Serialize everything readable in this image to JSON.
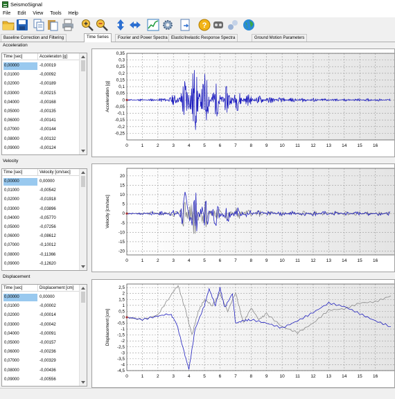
{
  "window": {
    "title": "SeismoSignal"
  },
  "menu": [
    "File",
    "Edit",
    "View",
    "Tools",
    "Help"
  ],
  "toolbar": {
    "buttons": [
      "open-folder-icon",
      "save-icon",
      "copy-icon",
      "print-icon",
      "zoom-in-icon",
      "zoom-out-icon",
      "vertical-arrows-icon",
      "horizontal-arrows-icon",
      "chart-icon",
      "gear-icon",
      "export-icon",
      "help-icon",
      "settings-tools-icon",
      "pencil-icon",
      "globe-icon"
    ]
  },
  "tabs": [
    {
      "label": "Baseline Correction and Filtering",
      "active": false
    },
    {
      "label": "Time Series",
      "active": true
    },
    {
      "label": "Fourier and Power Spectra",
      "active": false
    },
    {
      "label": "Elastic/Inelastic Response Spectra",
      "active": false
    },
    {
      "label": "Ground Motion Parameters",
      "active": false
    }
  ],
  "panels": [
    {
      "label": "Acceleration",
      "col_time": "Time [sec]",
      "col_value": "Acceleraton [g]",
      "rows": [
        [
          "0,00000",
          "-0,00019"
        ],
        [
          "0,01000",
          "-0,00092"
        ],
        [
          "0,02000",
          "-0,00189"
        ],
        [
          "0,03000",
          "-0,00215"
        ],
        [
          "0,04000",
          "-0,00168"
        ],
        [
          "0,05000",
          "-0,00135"
        ],
        [
          "0,06000",
          "-0,00141"
        ],
        [
          "0,07000",
          "-0,00144"
        ],
        [
          "0,08000",
          "-0,00132"
        ],
        [
          "0,09000",
          "-0,00124"
        ]
      ]
    },
    {
      "label": "Velocity",
      "col_time": "Time [sec]",
      "col_value": "Velocity [cm/sec]",
      "rows": [
        [
          "0,00000",
          "0,00000"
        ],
        [
          "0,01000",
          "-0,00542"
        ],
        [
          "0,02000",
          "-0,01918"
        ],
        [
          "0,03000",
          "-0,03896"
        ],
        [
          "0,04000",
          "-0,05770"
        ],
        [
          "0,05000",
          "-0,07256"
        ],
        [
          "0,06000",
          "-0,08612"
        ],
        [
          "0,07000",
          "-0,10012"
        ],
        [
          "0,08000",
          "-0,11366"
        ],
        [
          "0,09000",
          "-0,12620"
        ]
      ]
    },
    {
      "label": "Displacement",
      "col_time": "Time [sec]",
      "col_value": "Displacement [cm]",
      "rows": [
        [
          "0,00000",
          "0,00000"
        ],
        [
          "0,01000",
          "-0,00002"
        ],
        [
          "0,02000",
          "-0,00014"
        ],
        [
          "0,03000",
          "-0,00042"
        ],
        [
          "0,04000",
          "-0,00091"
        ],
        [
          "0,05000",
          "-0,00157"
        ],
        [
          "0,06000",
          "-0,00236"
        ],
        [
          "0,07000",
          "-0,00329"
        ],
        [
          "0,08000",
          "-0,00436"
        ],
        [
          "0,09000",
          "-0,00556"
        ]
      ]
    }
  ],
  "chart_data": [
    {
      "type": "line",
      "ylabel": "Acceleration [g]",
      "xlim": [
        0,
        17
      ],
      "ylim": [
        -0.3,
        0.35
      ],
      "xticks": [
        0,
        1,
        2,
        3,
        4,
        5,
        6,
        7,
        8,
        9,
        10,
        11,
        12,
        13,
        14,
        15,
        16
      ],
      "yticks": [
        "0,35",
        "0,3",
        "0,25",
        "0,2",
        "0,15",
        "0,1",
        "0,05",
        "0",
        "-0,05",
        "-0,1",
        "-0,15",
        "-0,2",
        "-0,25"
      ],
      "ytick_values": [
        0.35,
        0.3,
        0.25,
        0.2,
        0.15,
        0.1,
        0.05,
        0,
        -0.05,
        -0.1,
        -0.15,
        -0.2,
        -0.25
      ],
      "series": [
        {
          "color": "#1f1fbf",
          "envelope": [
            [
              0,
              0.005
            ],
            [
              2,
              0.01
            ],
            [
              3,
              0.04
            ],
            [
              3.5,
              0.1
            ],
            [
              4,
              0.32
            ],
            [
              4.5,
              0.25
            ],
            [
              5,
              0.22
            ],
            [
              5.5,
              0.14
            ],
            [
              6,
              0.12
            ],
            [
              7,
              0.09
            ],
            [
              8,
              0.04
            ],
            [
              10,
              0.02
            ],
            [
              13,
              0.012
            ],
            [
              17,
              0.008
            ]
          ],
          "seed": 11
        }
      ],
      "grid": true
    },
    {
      "type": "line",
      "ylabel": "Velocity [cm/sec]",
      "xlim": [
        0,
        17
      ],
      "ylim": [
        -22,
        24
      ],
      "xticks": [
        0,
        1,
        2,
        3,
        4,
        5,
        6,
        7,
        8,
        9,
        10,
        11,
        12,
        13,
        14,
        15,
        16
      ],
      "yticks": [
        "20",
        "15",
        "10",
        "5",
        "0",
        "-5",
        "-10",
        "-15",
        "-20"
      ],
      "ytick_values": [
        20,
        15,
        10,
        5,
        0,
        -5,
        -10,
        -15,
        -20
      ],
      "series": [
        {
          "color": "#8a8a8a",
          "envelope": [
            [
              0,
              0.3
            ],
            [
              3,
              2
            ],
            [
              3.6,
              8
            ],
            [
              4,
              18
            ],
            [
              4.5,
              12
            ],
            [
              5,
              9
            ],
            [
              6,
              6
            ],
            [
              7,
              4
            ],
            [
              8,
              2
            ],
            [
              10,
              1.5
            ],
            [
              17,
              1
            ]
          ],
          "seed": 5
        },
        {
          "color": "#1f1fbf",
          "envelope": [
            [
              0,
              0.3
            ],
            [
              3,
              2
            ],
            [
              3.6,
              10
            ],
            [
              4,
              20
            ],
            [
              4.5,
              13
            ],
            [
              5,
              9
            ],
            [
              6,
              6
            ],
            [
              7,
              4
            ],
            [
              8,
              2
            ],
            [
              10,
              1.5
            ],
            [
              17,
              1
            ]
          ],
          "seed": 7
        }
      ],
      "grid": true
    },
    {
      "type": "line",
      "ylabel": "Displacement [cm]",
      "xlim": [
        0,
        17
      ],
      "ylim": [
        -4.5,
        2.8
      ],
      "xticks": [
        0,
        1,
        2,
        3,
        4,
        5,
        6,
        7,
        8,
        9,
        10,
        11,
        12,
        13,
        14,
        15,
        16
      ],
      "yticks": [
        "2,5",
        "2",
        "1,5",
        "1",
        "0,5",
        "0",
        "-0,5",
        "-1",
        "-1,5",
        "-2",
        "-2,5",
        "-3",
        "-3,5",
        "-4",
        "-4,5"
      ],
      "ytick_values": [
        2.5,
        2,
        1.5,
        1,
        0.5,
        0,
        -0.5,
        -1,
        -1.5,
        -2,
        -2.5,
        -3,
        -3.5,
        -4,
        -4.5
      ],
      "series": [
        {
          "color": "#8a8a8a",
          "points": [
            [
              0,
              0
            ],
            [
              1,
              -0.2
            ],
            [
              2,
              0.2
            ],
            [
              2.8,
              1.8
            ],
            [
              3.3,
              2.7
            ],
            [
              3.8,
              0.5
            ],
            [
              4.2,
              -1.5
            ],
            [
              4.6,
              0.5
            ],
            [
              5,
              1.5
            ],
            [
              5.5,
              1
            ],
            [
              6,
              2
            ],
            [
              6.5,
              0.5
            ],
            [
              7,
              2.1
            ],
            [
              7.5,
              -0.5
            ],
            [
              8,
              0.8
            ],
            [
              8.5,
              -0.2
            ],
            [
              9,
              0.3
            ],
            [
              10,
              -0.8
            ],
            [
              11,
              -1.3
            ],
            [
              12,
              -0.5
            ],
            [
              13,
              0.6
            ],
            [
              14,
              0.7
            ],
            [
              15,
              1.2
            ],
            [
              16,
              1.3
            ],
            [
              17,
              1.8
            ]
          ]
        },
        {
          "color": "#1f1fbf",
          "points": [
            [
              0,
              0
            ],
            [
              1,
              -0.2
            ],
            [
              2,
              0.1
            ],
            [
              2.8,
              0.3
            ],
            [
              3.2,
              -0.5
            ],
            [
              3.7,
              -3
            ],
            [
              4,
              -4.4
            ],
            [
              4.4,
              -1
            ],
            [
              5,
              1
            ],
            [
              5.3,
              2.4
            ],
            [
              5.7,
              1
            ],
            [
              6,
              2.5
            ],
            [
              6.3,
              0.8
            ],
            [
              6.8,
              2
            ],
            [
              7,
              -0.5
            ],
            [
              7.5,
              -0.3
            ],
            [
              8,
              -0.2
            ],
            [
              9,
              -0.5
            ],
            [
              10,
              -0.9
            ],
            [
              11,
              -0.3
            ],
            [
              12,
              0.4
            ],
            [
              13,
              1.2
            ],
            [
              14,
              0.9
            ],
            [
              15,
              0.3
            ],
            [
              16,
              -0.3
            ],
            [
              17,
              -0.8
            ]
          ]
        }
      ],
      "grid": true
    }
  ]
}
